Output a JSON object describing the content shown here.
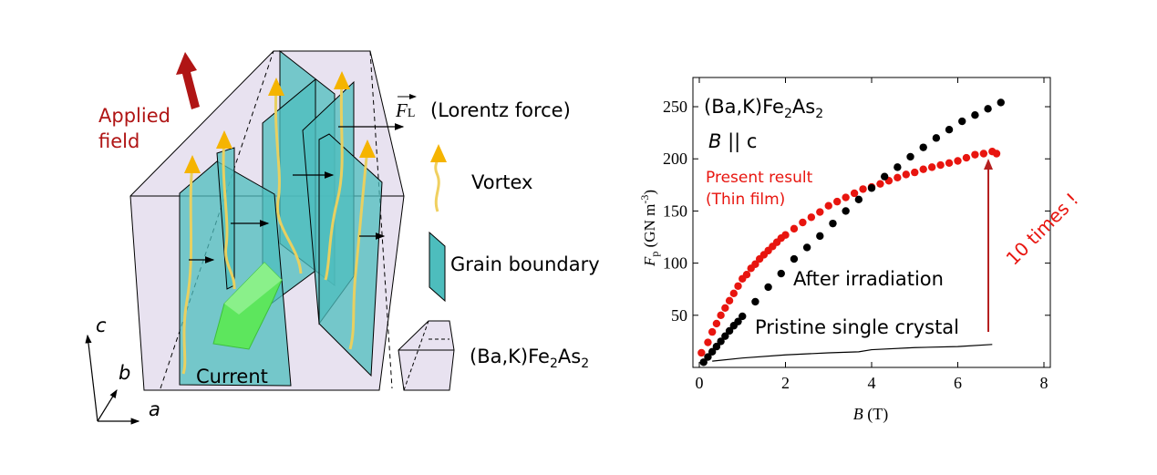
{
  "diagram": {
    "applied_field_line1": "Applied",
    "applied_field_line2": "field",
    "lorentz_symbol": "F",
    "lorentz_subscript": "L",
    "lorentz_label": "(Lorentz force)",
    "vortex_label": "Vortex",
    "grain_boundary_label": "Grain boundary",
    "crystal_label_main": "(Ba,K)Fe",
    "crystal_label_sub1": "2",
    "crystal_label_mid": "As",
    "crystal_label_sub2": "2",
    "current_label": "Current",
    "axis_c": "c",
    "axis_b": "b",
    "axis_a": "a",
    "colors": {
      "applied_field": "#b01515",
      "grain_boundary": "#4dbdbd",
      "vortex": "#f5b400",
      "current": "#5de65d",
      "crystal": "#e8e2f0"
    }
  },
  "chart_data": {
    "type": "scatter",
    "xlabel": "B (T)",
    "xlabel_var": "B",
    "xlabel_unit": "(T)",
    "ylabel_var": "F",
    "ylabel_sub": "p",
    "ylabel_unit": "(GN m",
    "ylabel_exp": "-3",
    "ylabel_close": ")",
    "xlim": [
      0,
      8
    ],
    "ylim": [
      0,
      278
    ],
    "xticks": [
      "0",
      "2",
      "4",
      "6",
      "8"
    ],
    "yticks": [
      "50",
      "100",
      "150",
      "200",
      "250"
    ],
    "grid": false,
    "annotations": {
      "material_main": "(Ba,K)Fe",
      "material_sub1": "2",
      "material_mid": "As",
      "material_sub2": "2",
      "orientation_var": "B",
      "orientation_rest": " || c",
      "present_line1": "Present result",
      "present_line2": "(Thin film)",
      "after_irradiation": "After irradiation",
      "pristine": "Pristine single crystal",
      "ten_times": "10 times !"
    },
    "series": [
      {
        "name": "Present result (Thin film)",
        "color": "#e8150f",
        "style": "dots",
        "x": [
          0.05,
          0.2,
          0.3,
          0.4,
          0.5,
          0.6,
          0.7,
          0.8,
          0.9,
          1.0,
          1.1,
          1.2,
          1.3,
          1.4,
          1.5,
          1.6,
          1.7,
          1.8,
          1.9,
          2.0,
          2.2,
          2.4,
          2.6,
          2.8,
          3.0,
          3.2,
          3.4,
          3.6,
          3.8,
          4.0,
          4.2,
          4.4,
          4.6,
          4.8,
          5.0,
          5.2,
          5.4,
          5.6,
          5.8,
          6.0,
          6.2,
          6.4,
          6.6,
          6.8,
          6.9
        ],
        "y": [
          14,
          24,
          34,
          42,
          50,
          57,
          64,
          71,
          78,
          85,
          89,
          95,
          99,
          104,
          108,
          112,
          116,
          120,
          124,
          127,
          133,
          139,
          144,
          149,
          155,
          159,
          163,
          167,
          171,
          173,
          176,
          179,
          182,
          185,
          187,
          190,
          192,
          194,
          196,
          198,
          201,
          204,
          205,
          207,
          205
        ]
      },
      {
        "name": "After irradiation",
        "color": "#000000",
        "style": "dots",
        "x": [
          0.1,
          0.2,
          0.3,
          0.4,
          0.5,
          0.6,
          0.7,
          0.8,
          0.9,
          1.0,
          1.3,
          1.6,
          1.9,
          2.2,
          2.5,
          2.8,
          3.1,
          3.4,
          3.7,
          4.0,
          4.3,
          4.6,
          4.9,
          5.2,
          5.5,
          5.8,
          6.1,
          6.4,
          6.7,
          7.0
        ],
        "y": [
          5,
          10,
          15,
          20,
          25,
          30,
          35,
          40,
          44,
          49,
          63,
          77,
          90,
          104,
          115,
          126,
          138,
          150,
          161,
          172,
          183,
          192,
          202,
          211,
          220,
          228,
          236,
          242,
          248,
          254
        ]
      },
      {
        "name": "Pristine single crystal",
        "color": "#000000",
        "style": "line",
        "x": [
          0.3,
          1.0,
          2.0,
          3.0,
          3.7,
          4.0,
          5.0,
          6.0,
          6.8
        ],
        "y": [
          6,
          9,
          12,
          14,
          15,
          17,
          19,
          20,
          22
        ]
      }
    ],
    "arrow_color": "#b52020"
  }
}
